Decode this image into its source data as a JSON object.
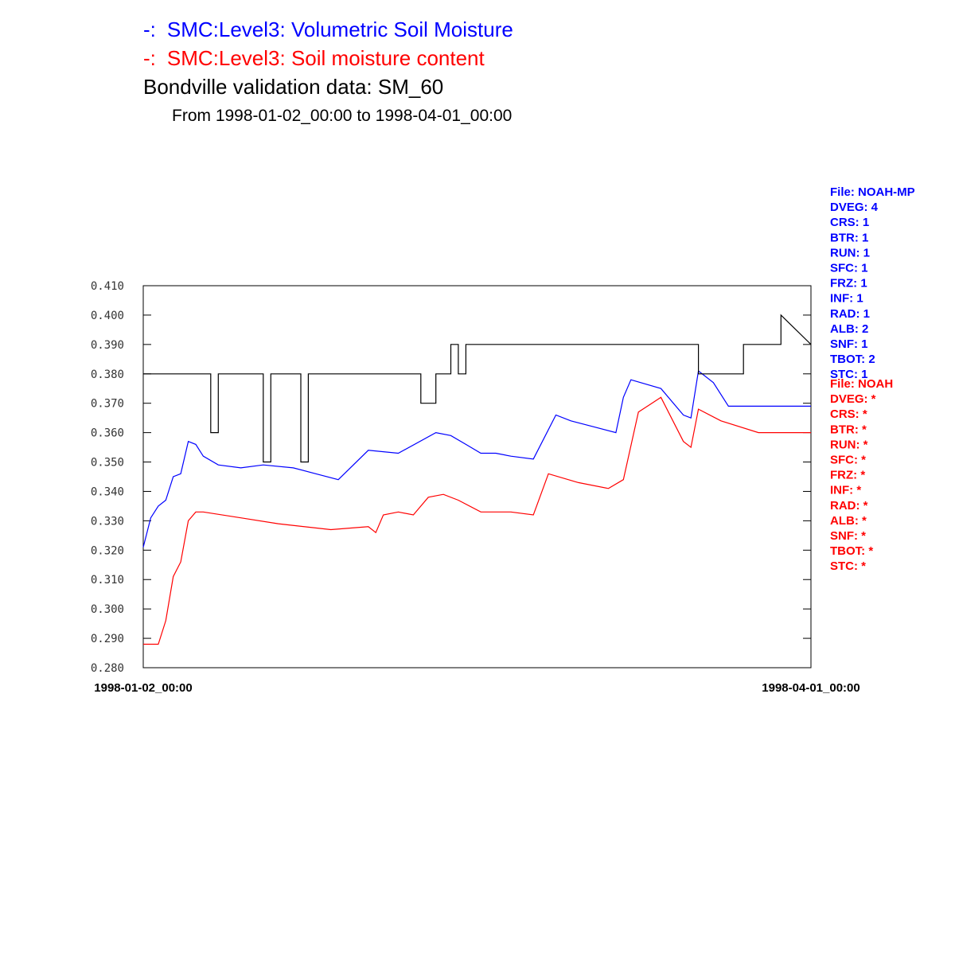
{
  "chart_data": {
    "type": "line",
    "title_lines": [
      {
        "prefix": "-:",
        "text": "SMC:Level3: Volumetric Soil Moisture",
        "color": "#0000ff"
      },
      {
        "prefix": "-:",
        "text": "SMC:Level3: Soil moisture content",
        "color": "#ff0000"
      },
      {
        "prefix": "",
        "text": "Bondville validation data:  SM_60",
        "color": "#000000"
      }
    ],
    "subtitle": "From 1998-01-02_00:00 to 1998-04-01_00:00",
    "xlabel": "",
    "ylabel": "",
    "x_ticks": [
      "1998-01-02_00:00",
      "1998-04-01_00:00"
    ],
    "xlim": [
      "1998-01-02_00:00",
      "1998-04-01_00:00"
    ],
    "ylim": [
      0.28,
      0.41
    ],
    "y_ticks": [
      0.28,
      0.29,
      0.3,
      0.31,
      0.32,
      0.33,
      0.34,
      0.35,
      0.36,
      0.37,
      0.38,
      0.39,
      0.4,
      0.41
    ],
    "y_tick_labels": [
      "0.280",
      "0.290",
      "0.300",
      "0.310",
      "0.320",
      "0.330",
      "0.340",
      "0.350",
      "0.360",
      "0.370",
      "0.380",
      "0.390",
      "0.400",
      "0.410"
    ],
    "grid": false,
    "series": [
      {
        "color": "#0000ff",
        "x": [
          "1998-01-02",
          "1998-01-03",
          "1998-01-04",
          "1998-01-05",
          "1998-01-06",
          "1998-01-07",
          "1998-01-08",
          "1998-01-09",
          "1998-01-10",
          "1998-01-12",
          "1998-01-15",
          "1998-01-18",
          "1998-01-22",
          "1998-01-25",
          "1998-01-28",
          "1998-02-01",
          "1998-02-05",
          "1998-02-10",
          "1998-02-12",
          "1998-02-14",
          "1998-02-16",
          "1998-02-17",
          "1998-02-18",
          "1998-02-20",
          "1998-02-23",
          "1998-02-26",
          "1998-02-28",
          "1998-03-03",
          "1998-03-06",
          "1998-03-07",
          "1998-03-08",
          "1998-03-12",
          "1998-03-15",
          "1998-03-16",
          "1998-03-17",
          "1998-03-19",
          "1998-03-21",
          "1998-03-24",
          "1998-03-27",
          "1998-03-28",
          "1998-03-29",
          "1998-03-30",
          "1998-03-31",
          "1998-04-01"
        ],
        "y": [
          0.321,
          0.331,
          0.335,
          0.337,
          0.345,
          0.346,
          0.357,
          0.356,
          0.352,
          0.349,
          0.348,
          0.349,
          0.348,
          0.346,
          0.344,
          0.354,
          0.353,
          0.36,
          0.359,
          0.356,
          0.353,
          0.353,
          0.353,
          0.352,
          0.351,
          0.366,
          0.364,
          0.362,
          0.36,
          0.372,
          0.378,
          0.375,
          0.366,
          0.365,
          0.381,
          0.377,
          0.369,
          0.369,
          0.369,
          0.369,
          0.369,
          0.369,
          0.369,
          0.369
        ]
      },
      {
        "color": "#ff0000",
        "x": [
          "1998-01-02",
          "1998-01-04",
          "1998-01-05",
          "1998-01-06",
          "1998-01-07",
          "1998-01-08",
          "1998-01-09",
          "1998-01-10",
          "1998-01-15",
          "1998-01-20",
          "1998-01-27",
          "1998-02-01",
          "1998-02-02",
          "1998-02-03",
          "1998-02-05",
          "1998-02-07",
          "1998-02-09",
          "1998-02-11",
          "1998-02-13",
          "1998-02-16",
          "1998-02-20",
          "1998-02-23",
          "1998-02-25",
          "1998-03-01",
          "1998-03-05",
          "1998-03-07",
          "1998-03-09",
          "1998-03-12",
          "1998-03-14",
          "1998-03-15",
          "1998-03-16",
          "1998-03-17",
          "1998-03-20",
          "1998-03-25",
          "1998-04-01"
        ],
        "y": [
          0.288,
          0.288,
          0.296,
          0.311,
          0.316,
          0.33,
          0.333,
          0.333,
          0.331,
          0.329,
          0.327,
          0.328,
          0.326,
          0.332,
          0.333,
          0.332,
          0.338,
          0.339,
          0.337,
          0.333,
          0.333,
          0.332,
          0.346,
          0.343,
          0.341,
          0.344,
          0.367,
          0.372,
          0.362,
          0.357,
          0.355,
          0.368,
          0.364,
          0.36,
          0.36
        ]
      },
      {
        "color": "#000000",
        "step": true,
        "x": [
          "1998-01-02",
          "1998-01-11",
          "1998-01-11",
          "1998-01-12",
          "1998-01-12",
          "1998-01-18",
          "1998-01-18",
          "1998-01-19",
          "1998-01-19",
          "1998-01-23",
          "1998-01-23",
          "1998-01-24",
          "1998-01-24",
          "1998-02-08",
          "1998-02-08",
          "1998-02-10",
          "1998-02-10",
          "1998-02-12",
          "1998-02-12",
          "1998-02-13",
          "1998-02-13",
          "1998-02-14",
          "1998-02-14",
          "1998-03-17",
          "1998-03-17",
          "1998-03-23",
          "1998-03-23",
          "1998-03-28",
          "1998-03-28",
          "1998-04-01"
        ],
        "y": [
          0.38,
          0.38,
          0.36,
          0.36,
          0.38,
          0.38,
          0.35,
          0.35,
          0.38,
          0.38,
          0.35,
          0.35,
          0.38,
          0.38,
          0.37,
          0.37,
          0.38,
          0.38,
          0.39,
          0.39,
          0.38,
          0.38,
          0.39,
          0.39,
          0.38,
          0.38,
          0.39,
          0.39,
          0.4,
          0.39
        ]
      }
    ],
    "legend_position": "right",
    "legend_groups": [
      {
        "color": "#0000ff",
        "lines": [
          "File: NOAH-MP",
          "DVEG: 4",
          "CRS: 1",
          "BTR: 1",
          "RUN: 1",
          "SFC: 1",
          "FRZ: 1",
          "INF: 1",
          "RAD: 1",
          "ALB: 2",
          "SNF: 1",
          "TBOT: 2",
          "STC: 1"
        ]
      },
      {
        "color": "#ff0000",
        "lines": [
          "File: NOAH",
          "DVEG: *",
          "CRS: *",
          "BTR: *",
          "RUN: *",
          "SFC: *",
          "FRZ: *",
          "INF: *",
          "RAD: *",
          "ALB: *",
          "SNF: *",
          "TBOT: *",
          "STC: *"
        ]
      }
    ]
  }
}
